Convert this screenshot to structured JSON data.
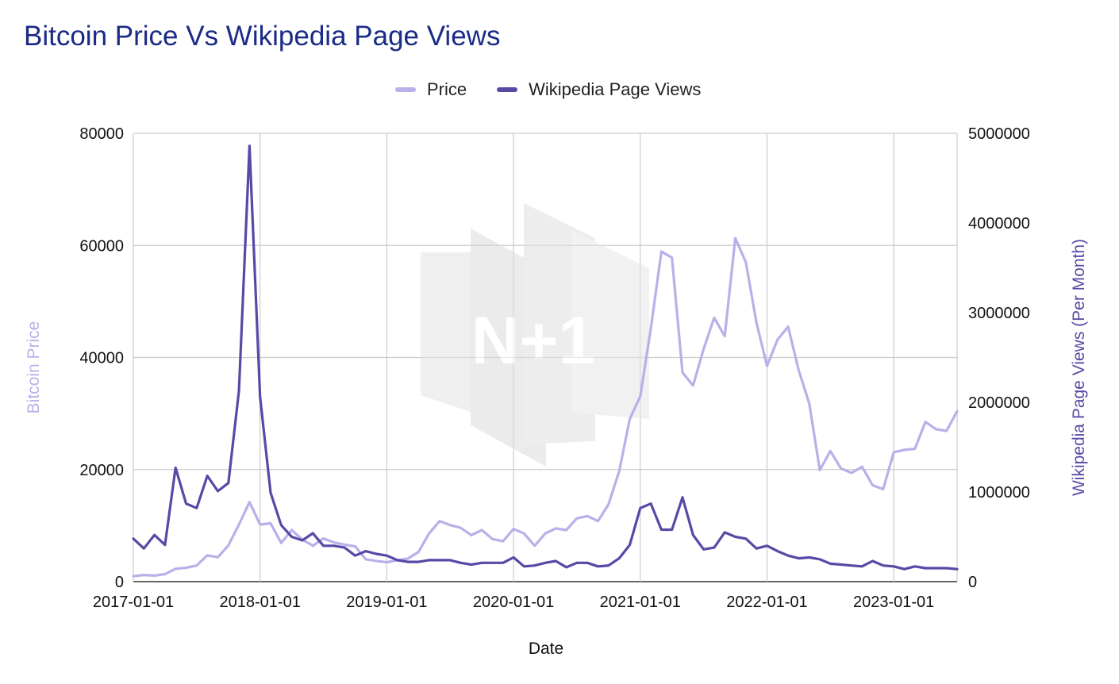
{
  "chart_data": {
    "type": "line",
    "title": "Bitcoin Price Vs Wikipedia Page Views",
    "xlabel": "Date",
    "ylabel": "Bitcoin Price",
    "y2label": "Wikipedia Page Views (Per Month)",
    "ylim": [
      0,
      80000
    ],
    "y2lim": [
      0,
      5000000
    ],
    "yticks": [
      "0",
      "20000",
      "40000",
      "60000",
      "80000"
    ],
    "y2ticks": [
      "0",
      "1000000",
      "2000000",
      "3000000",
      "4000000",
      "5000000"
    ],
    "xticks": [
      "2017-01-01",
      "2018-01-01",
      "2019-01-01",
      "2020-01-01",
      "2021-01-01",
      "2022-01-01",
      "2023-01-01"
    ],
    "x_start": "2017-01",
    "x_end": "2023-07",
    "grid": true,
    "legend_position": "top-center",
    "watermark": "N+1",
    "series": [
      {
        "name": "Price",
        "axis": "left",
        "color": "#b8b0e8",
        "values": [
          970,
          1190,
          1080,
          1350,
          2300,
          2480,
          2880,
          4700,
          4340,
          6470,
          10200,
          14200,
          10200,
          10400,
          6900,
          9200,
          7500,
          6400,
          7700,
          7000,
          6600,
          6300,
          4000,
          3700,
          3450,
          3830,
          4100,
          5300,
          8600,
          10800,
          10100,
          9600,
          8300,
          9200,
          7600,
          7200,
          9400,
          8600,
          6400,
          8600,
          9500,
          9200,
          11300,
          11700,
          10800,
          13800,
          19700,
          29000,
          33100,
          45200,
          58900,
          57800,
          37300,
          35000,
          41500,
          47100,
          43800,
          61300,
          57000,
          46200,
          38500,
          43200,
          45500,
          37700,
          31800,
          19900,
          23300,
          20200,
          19400,
          20500,
          17200,
          16500,
          23100,
          23500,
          23700,
          28500,
          27200,
          26900,
          30400
        ]
      },
      {
        "name": "Wikipedia Page Views",
        "axis": "right",
        "color": "#5b47a6",
        "values": [
          480000,
          370000,
          520000,
          410000,
          1270000,
          870000,
          820000,
          1180000,
          1010000,
          1100000,
          2130000,
          4860000,
          2060000,
          990000,
          630000,
          500000,
          460000,
          540000,
          400000,
          400000,
          380000,
          290000,
          340000,
          310000,
          290000,
          240000,
          220000,
          220000,
          240000,
          240000,
          240000,
          210000,
          190000,
          210000,
          210000,
          210000,
          270000,
          170000,
          180000,
          210000,
          230000,
          160000,
          210000,
          210000,
          170000,
          180000,
          260000,
          410000,
          820000,
          870000,
          580000,
          580000,
          940000,
          520000,
          360000,
          380000,
          550000,
          500000,
          480000,
          370000,
          400000,
          340000,
          290000,
          260000,
          270000,
          250000,
          200000,
          190000,
          180000,
          170000,
          230000,
          180000,
          170000,
          140000,
          170000,
          150000,
          150000,
          150000,
          140000
        ]
      }
    ]
  }
}
